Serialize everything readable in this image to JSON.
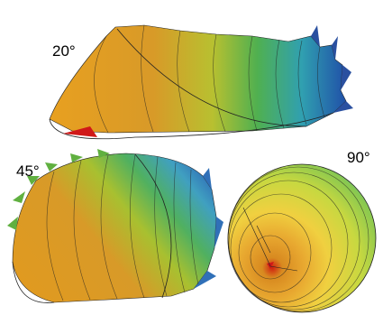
{
  "panels": [
    {
      "label": "20°"
    },
    {
      "label": "45°"
    },
    {
      "label": "90°"
    }
  ]
}
